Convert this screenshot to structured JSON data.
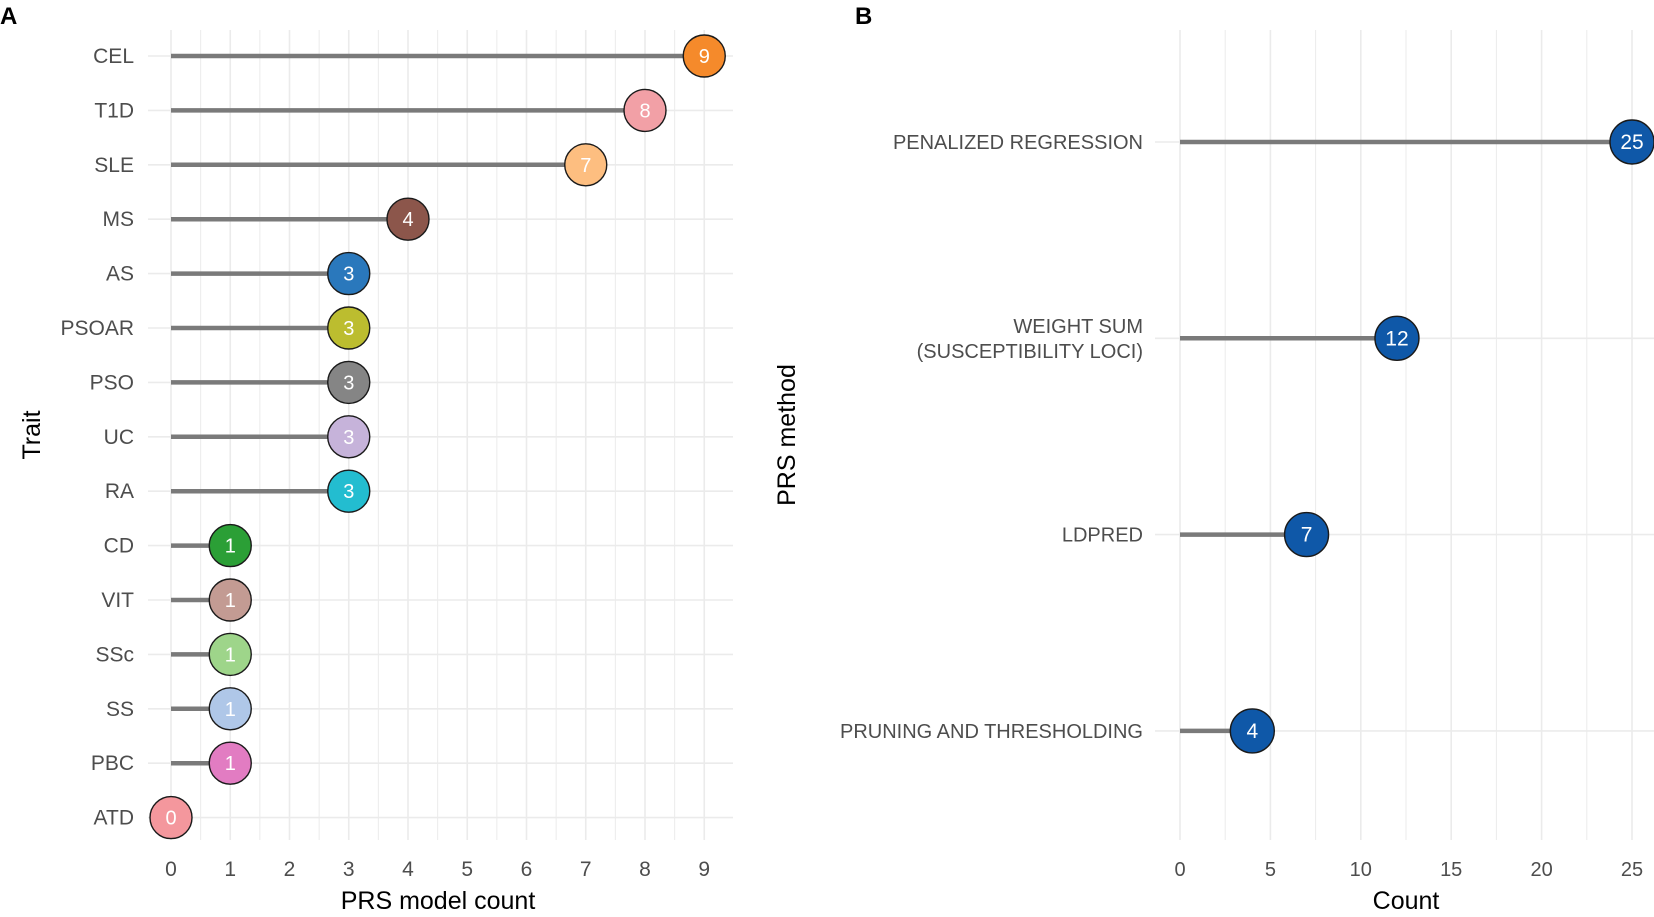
{
  "chart_data": [
    {
      "panel": "A",
      "type": "lollipop",
      "xlabel": "PRS model count",
      "ylabel": "Trait",
      "xlim": [
        0,
        9
      ],
      "xticks": [
        0,
        1,
        2,
        3,
        4,
        5,
        6,
        7,
        8,
        9
      ],
      "grid": true,
      "points": [
        {
          "category": "CEL",
          "value": 9,
          "label": "9",
          "color": "#F58A2B",
          "text_color": "#ffffff"
        },
        {
          "category": "T1D",
          "value": 8,
          "label": "8",
          "color": "#F2A0A6",
          "text_color": "#ffffff"
        },
        {
          "category": "SLE",
          "value": 7,
          "label": "7",
          "color": "#FDBE80",
          "text_color": "#ffffff"
        },
        {
          "category": "MS",
          "value": 4,
          "label": "4",
          "color": "#8C564B",
          "text_color": "#ffffff"
        },
        {
          "category": "AS",
          "value": 3,
          "label": "3",
          "color": "#2A78BC",
          "text_color": "#ffffff"
        },
        {
          "category": "PSOAR",
          "value": 3,
          "label": "3",
          "color": "#BCBD2F",
          "text_color": "#ffffff"
        },
        {
          "category": "PSO",
          "value": 3,
          "label": "3",
          "color": "#858585",
          "text_color": "#ffffff"
        },
        {
          "category": "UC",
          "value": 3,
          "label": "3",
          "color": "#C6B3DA",
          "text_color": "#ffffff"
        },
        {
          "category": "RA",
          "value": 3,
          "label": "3",
          "color": "#23BDD0",
          "text_color": "#ffffff"
        },
        {
          "category": "CD",
          "value": 1,
          "label": "1",
          "color": "#2B9F36",
          "text_color": "#ffffff"
        },
        {
          "category": "VIT",
          "value": 1,
          "label": "1",
          "color": "#C39B93",
          "text_color": "#ffffff"
        },
        {
          "category": "SSc",
          "value": 1,
          "label": "1",
          "color": "#9ED58A",
          "text_color": "#ffffff"
        },
        {
          "category": "SS",
          "value": 1,
          "label": "1",
          "color": "#AFC7E8",
          "text_color": "#ffffff"
        },
        {
          "category": "PBC",
          "value": 1,
          "label": "1",
          "color": "#E27CC2",
          "text_color": "#ffffff"
        },
        {
          "category": "ATD",
          "value": 0,
          "label": "0",
          "color": "#F4979D",
          "text_color": "#ffffff"
        }
      ]
    },
    {
      "panel": "B",
      "type": "lollipop",
      "xlabel": "Count",
      "ylabel": "PRS method",
      "xlim": [
        0,
        25
      ],
      "xticks": [
        0,
        5,
        10,
        15,
        20,
        25
      ],
      "grid": true,
      "points": [
        {
          "category": "PENALIZED REGRESSION",
          "value": 25,
          "label": "25",
          "color": "#0F58A8",
          "text_color": "#ffffff",
          "lines": [
            "PENALIZED REGRESSION"
          ]
        },
        {
          "category": "WEIGHT SUM (SUSCEPTIBILITY LOCI)",
          "value": 12,
          "label": "12",
          "color": "#0F58A8",
          "text_color": "#ffffff",
          "lines": [
            "WEIGHT SUM",
            "(SUSCEPTIBILITY LOCI)"
          ]
        },
        {
          "category": "LDPRED",
          "value": 7,
          "label": "7",
          "color": "#0F58A8",
          "text_color": "#ffffff",
          "lines": [
            "LDPRED"
          ]
        },
        {
          "category": "PRUNING AND THRESHOLDING",
          "value": 4,
          "label": "4",
          "color": "#0F58A8",
          "text_color": "#ffffff",
          "lines": [
            "PRUNING AND THRESHOLDING"
          ]
        }
      ]
    }
  ],
  "colors": {
    "stem": "#7a7a7a",
    "grid": "#ebebeb",
    "axis_text": "#4d4d4d",
    "title_text": "#000000"
  }
}
